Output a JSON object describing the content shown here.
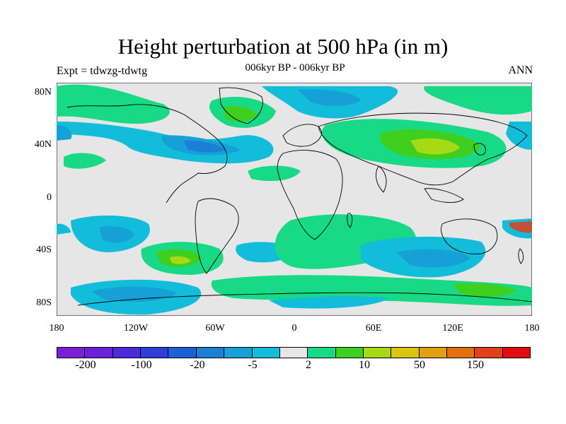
{
  "title": "Height perturbation at 500 hPa (in m)",
  "subtitle": "006kyr BP - 006kyr BP",
  "left_label": "Expt = tdwzg-tdwtg",
  "right_label": "ANN",
  "lat_labels": [
    "80N",
    "40N",
    "0",
    "40S",
    "80S"
  ],
  "lon_labels": [
    "180",
    "120W",
    "60W",
    "0",
    "60E",
    "120E",
    "180"
  ],
  "colorbar": {
    "colors": [
      "#7a1fd6",
      "#6a21d8",
      "#4b2bd8",
      "#2d3fd8",
      "#1e5fd6",
      "#1b7fd6",
      "#15a0d6",
      "#12bdd9",
      "#e6e6e6",
      "#17d986",
      "#3fd01f",
      "#a7d914",
      "#d9c410",
      "#e0a010",
      "#e07010",
      "#e0401a",
      "#e00e0e"
    ],
    "labels": [
      "-200",
      "-100",
      "-20",
      "-5",
      "2",
      "10",
      "50",
      "150"
    ]
  },
  "map_colors": {
    "background": "#e6e6e6",
    "weak_negative": "#12bdd9",
    "moderate_negative": "#15a0d6",
    "strong_negative": "#1b7fd6",
    "weak_positive": "#17d986",
    "moderate_positive": "#3fd01f",
    "strong_positive": "#a7d914",
    "coastline": "#000000"
  }
}
